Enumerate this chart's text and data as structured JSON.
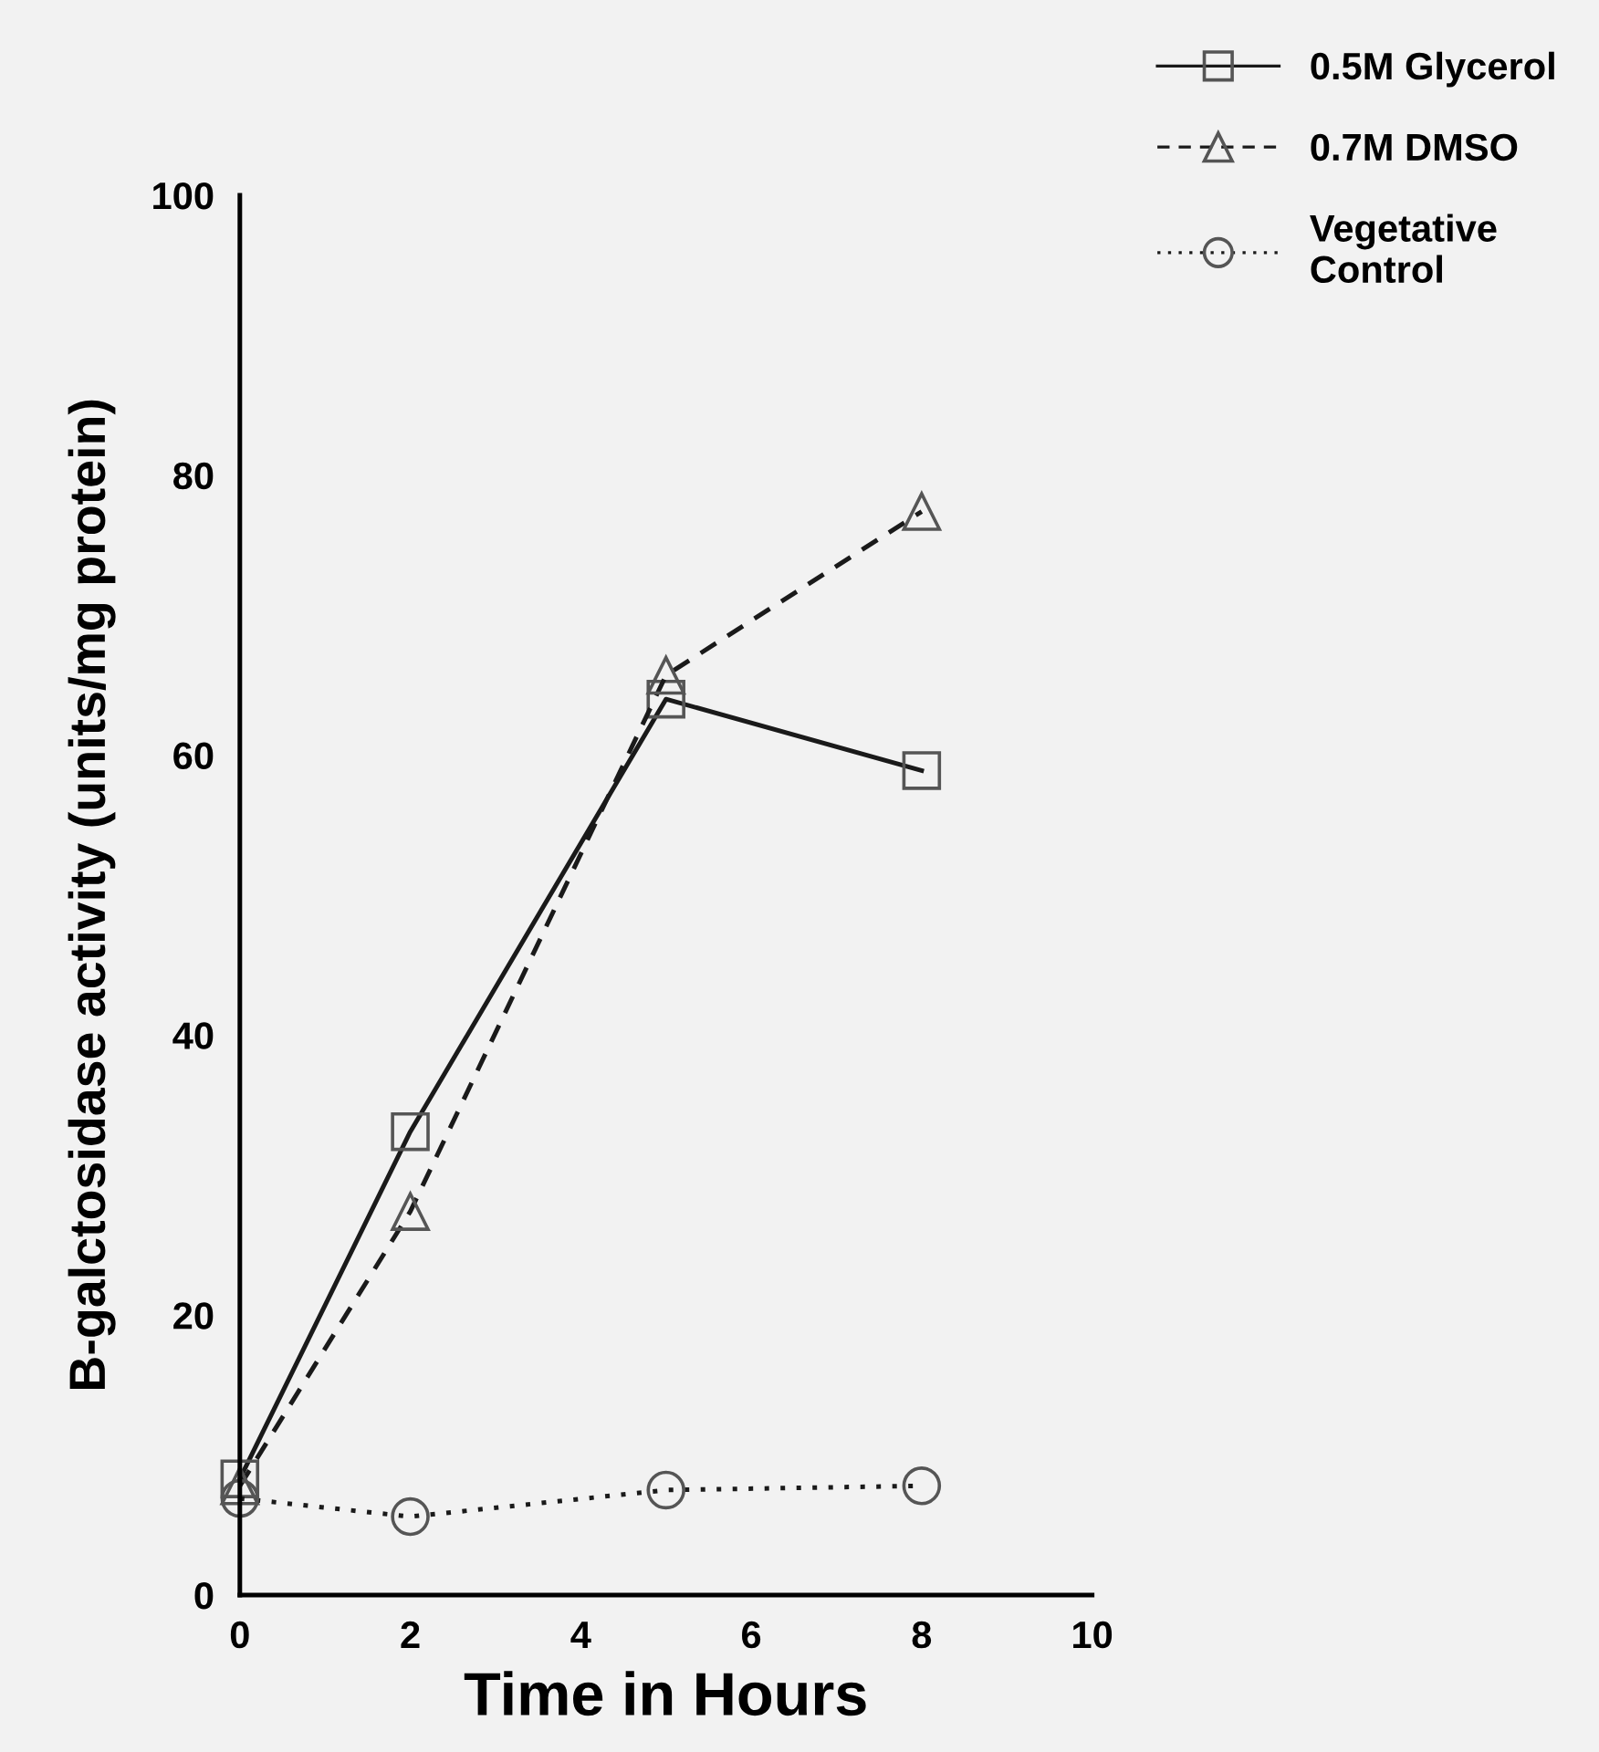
{
  "chart_data": {
    "type": "line",
    "xlabel": "Time in Hours",
    "ylabel": "B-galctosidase activity (units/mg protein)",
    "x": [
      0,
      2,
      5,
      8
    ],
    "series": [
      {
        "name": "0.5M Glycerol",
        "color": "#1a1a1a",
        "marker": "square",
        "line_style": "solid",
        "values": [
          8.3,
          33.1,
          64.0,
          58.9
        ]
      },
      {
        "name": "0.7M DMSO",
        "color": "#1a1a1a",
        "marker": "triangle",
        "line_style": "dashed",
        "values": [
          7.8,
          27.4,
          65.7,
          77.4
        ]
      },
      {
        "name": "Vegetative\nControl",
        "color": "#1a1a1a",
        "marker": "circle",
        "line_style": "dotted",
        "values": [
          6.9,
          5.6,
          7.5,
          7.8
        ]
      }
    ],
    "xlim": [
      0,
      10
    ],
    "xticks": [
      0,
      2,
      4,
      6,
      8,
      10
    ],
    "ylim": [
      0,
      100
    ],
    "yticks": [
      0,
      20,
      40,
      60,
      80,
      100
    ],
    "grid": false,
    "legend": "top right"
  }
}
